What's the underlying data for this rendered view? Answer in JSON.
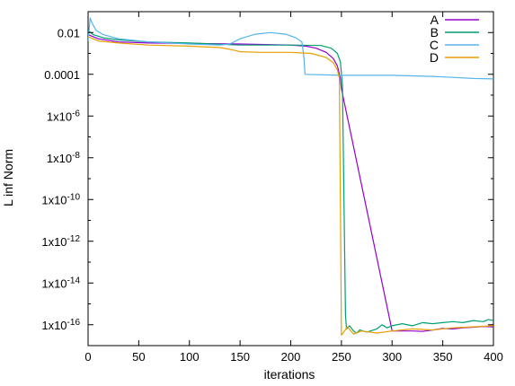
{
  "chart_data": {
    "type": "line",
    "title": "",
    "xlabel": "iterations",
    "ylabel": "L inf Norm",
    "xlim": [
      0,
      400
    ],
    "ylim_log10": [
      -17,
      -1
    ],
    "yscale": "log",
    "grid": false,
    "legend_position": "top-right",
    "x_ticks": [
      {
        "value": 0,
        "label": "0"
      },
      {
        "value": 50,
        "label": "50"
      },
      {
        "value": 100,
        "label": "100"
      },
      {
        "value": 150,
        "label": "150"
      },
      {
        "value": 200,
        "label": "200"
      },
      {
        "value": 250,
        "label": "250"
      },
      {
        "value": 300,
        "label": "300"
      },
      {
        "value": 350,
        "label": "350"
      },
      {
        "value": 400,
        "label": "400"
      }
    ],
    "y_ticks": [
      {
        "log10": -2,
        "label": "0.01"
      },
      {
        "log10": -4,
        "label": "0.0001"
      },
      {
        "log10": -6,
        "base": "1x10",
        "exp": "-6"
      },
      {
        "log10": -8,
        "base": "1x10",
        "exp": "-8"
      },
      {
        "log10": -10,
        "base": "1x10",
        "exp": "-10"
      },
      {
        "log10": -12,
        "base": "1x10",
        "exp": "-12"
      },
      {
        "log10": -14,
        "base": "1x10",
        "exp": "-14"
      },
      {
        "log10": -16,
        "base": "1x10",
        "exp": "-16"
      }
    ],
    "series": [
      {
        "name": "A",
        "color": "#9400d3",
        "points": [
          [
            0,
            -2.1
          ],
          [
            10,
            -2.3
          ],
          [
            30,
            -2.45
          ],
          [
            60,
            -2.5
          ],
          [
            100,
            -2.52
          ],
          [
            150,
            -2.55
          ],
          [
            200,
            -2.6
          ],
          [
            215,
            -2.65
          ],
          [
            225,
            -2.75
          ],
          [
            235,
            -2.95
          ],
          [
            242,
            -3.25
          ],
          [
            246,
            -3.6
          ],
          [
            249,
            -4.2
          ],
          [
            250,
            -4.7
          ],
          [
            300,
            -16.3
          ],
          [
            310,
            -16.3
          ],
          [
            320,
            -16.3
          ],
          [
            330,
            -16.32
          ],
          [
            340,
            -16.25
          ],
          [
            350,
            -16.18
          ],
          [
            360,
            -16.2
          ],
          [
            370,
            -16.15
          ],
          [
            380,
            -16.12
          ],
          [
            390,
            -16.08
          ],
          [
            400,
            -16.1
          ]
        ]
      },
      {
        "name": "B",
        "color": "#009e73",
        "points": [
          [
            0,
            -1.9
          ],
          [
            5,
            -2.1
          ],
          [
            15,
            -2.25
          ],
          [
            30,
            -2.35
          ],
          [
            60,
            -2.45
          ],
          [
            100,
            -2.5
          ],
          [
            150,
            -2.6
          ],
          [
            200,
            -2.6
          ],
          [
            230,
            -2.62
          ],
          [
            240,
            -2.75
          ],
          [
            246,
            -3.0
          ],
          [
            249,
            -3.4
          ],
          [
            251,
            -4.5
          ],
          [
            252,
            -8.0
          ],
          [
            253,
            -12.0
          ],
          [
            254,
            -15.5
          ],
          [
            255,
            -16.2
          ],
          [
            258,
            -16.05
          ],
          [
            262,
            -16.3
          ],
          [
            265,
            -16.4
          ],
          [
            268,
            -16.25
          ],
          [
            275,
            -16.35
          ],
          [
            285,
            -16.2
          ],
          [
            290,
            -16.0
          ],
          [
            295,
            -16.15
          ],
          [
            300,
            -16.05
          ],
          [
            310,
            -15.95
          ],
          [
            320,
            -16.05
          ],
          [
            330,
            -15.9
          ],
          [
            340,
            -15.95
          ],
          [
            350,
            -15.9
          ],
          [
            360,
            -15.85
          ],
          [
            370,
            -15.9
          ],
          [
            380,
            -15.8
          ],
          [
            390,
            -15.85
          ],
          [
            395,
            -15.75
          ],
          [
            400,
            -15.8
          ]
        ]
      },
      {
        "name": "C",
        "color": "#56b4e9",
        "points": [
          [
            0,
            -2.4
          ],
          [
            2,
            -1.3
          ],
          [
            4,
            -1.55
          ],
          [
            8,
            -1.9
          ],
          [
            15,
            -2.1
          ],
          [
            30,
            -2.3
          ],
          [
            60,
            -2.45
          ],
          [
            100,
            -2.55
          ],
          [
            130,
            -2.6
          ],
          [
            140,
            -2.55
          ],
          [
            150,
            -2.3
          ],
          [
            165,
            -2.08
          ],
          [
            180,
            -2.0
          ],
          [
            195,
            -2.08
          ],
          [
            205,
            -2.25
          ],
          [
            211,
            -2.45
          ],
          [
            213,
            -3.2
          ],
          [
            214,
            -4.0
          ],
          [
            250,
            -4.05
          ],
          [
            300,
            -4.05
          ],
          [
            340,
            -4.1
          ],
          [
            360,
            -4.15
          ],
          [
            380,
            -4.2
          ],
          [
            400,
            -4.22
          ]
        ]
      },
      {
        "name": "D",
        "color": "#e69f00",
        "points": [
          [
            0,
            -2.2
          ],
          [
            10,
            -2.4
          ],
          [
            30,
            -2.5
          ],
          [
            60,
            -2.6
          ],
          [
            100,
            -2.65
          ],
          [
            130,
            -2.72
          ],
          [
            140,
            -2.8
          ],
          [
            150,
            -2.92
          ],
          [
            170,
            -2.95
          ],
          [
            200,
            -2.95
          ],
          [
            220,
            -3.0
          ],
          [
            235,
            -3.2
          ],
          [
            242,
            -3.45
          ],
          [
            246,
            -3.8
          ],
          [
            248,
            -4.2
          ],
          [
            250,
            -16.5
          ],
          [
            256,
            -16.1
          ],
          [
            262,
            -16.45
          ],
          [
            270,
            -16.3
          ],
          [
            285,
            -16.4
          ],
          [
            300,
            -16.3
          ],
          [
            320,
            -16.2
          ],
          [
            340,
            -16.25
          ],
          [
            360,
            -16.15
          ],
          [
            380,
            -16.1
          ],
          [
            400,
            -16.05
          ]
        ]
      }
    ]
  }
}
